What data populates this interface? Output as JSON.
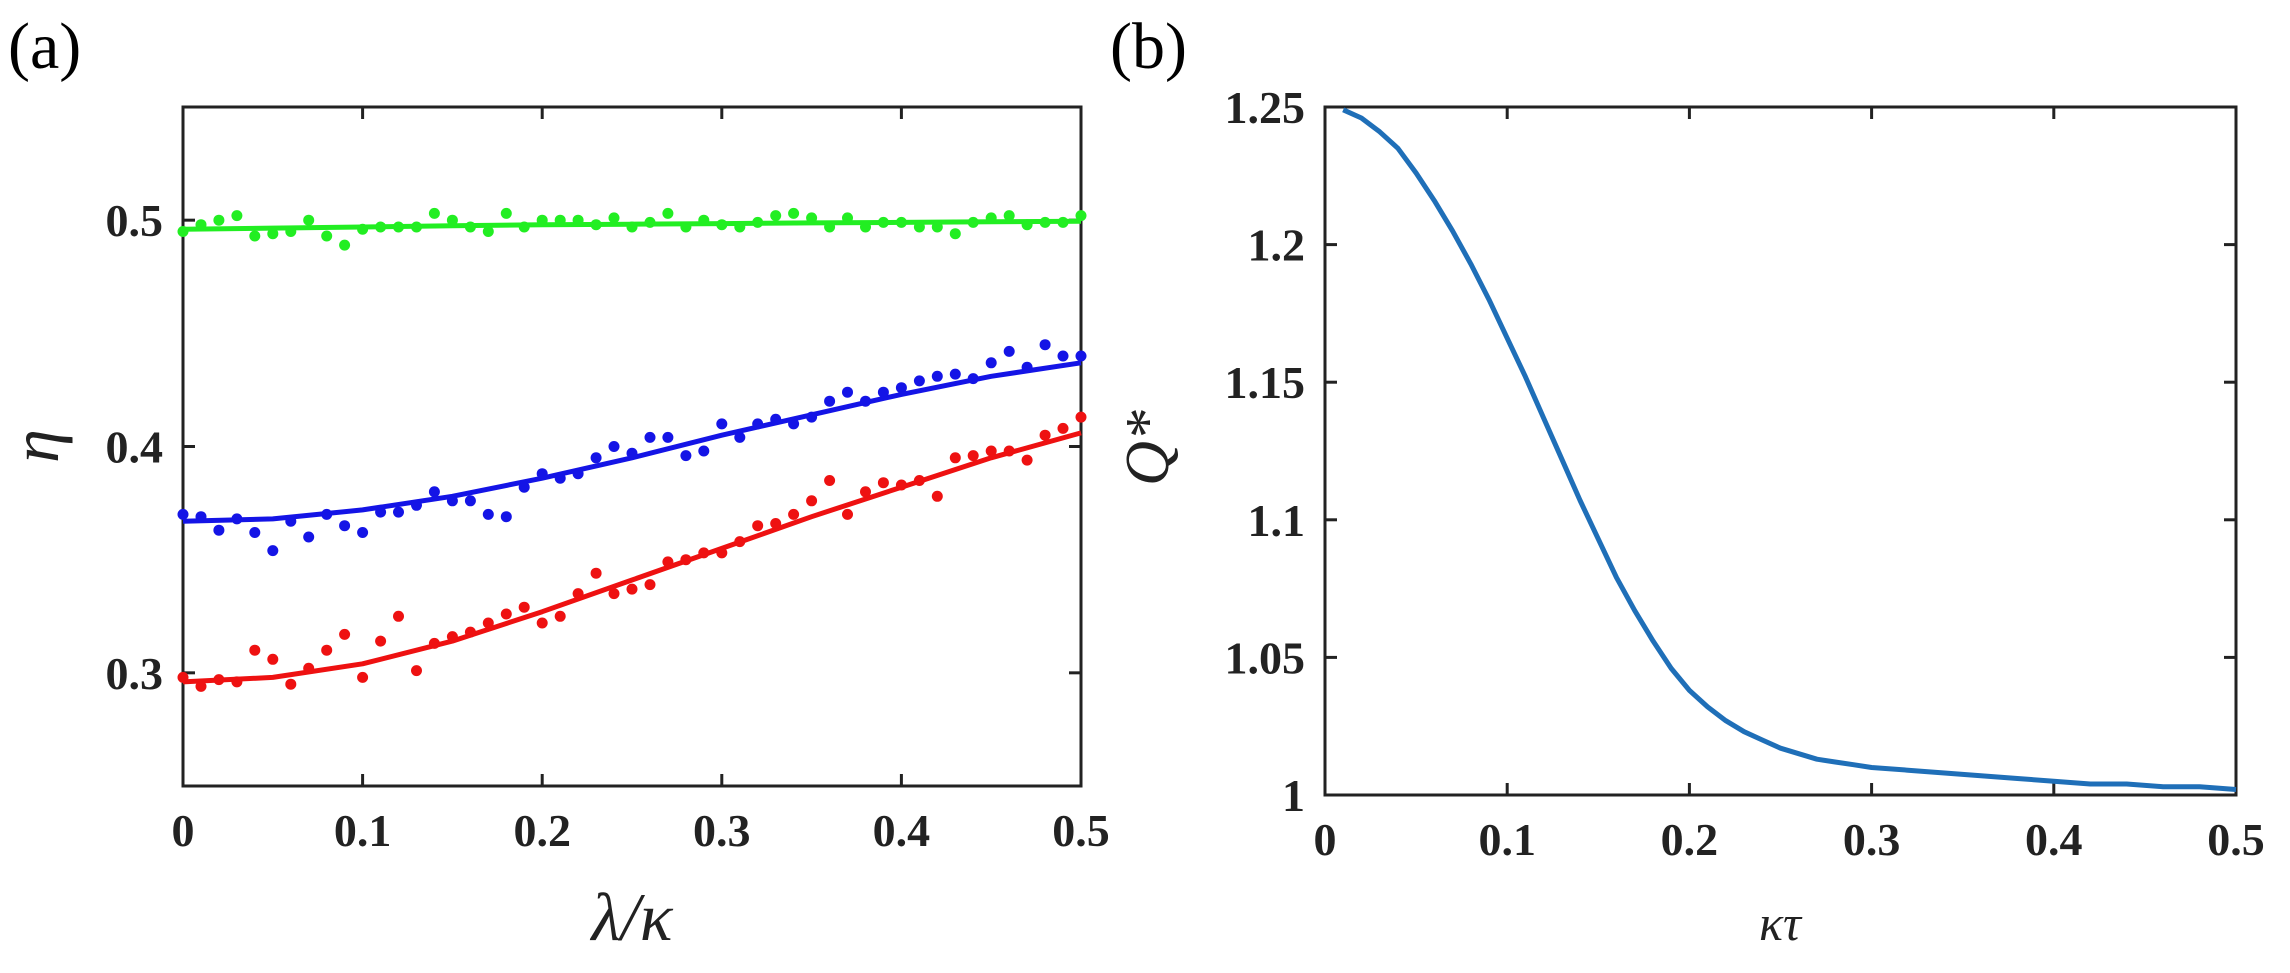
{
  "chart_data": [
    {
      "panel": "(a)",
      "type": "scatter",
      "xlabel": "λ/κ",
      "ylabel": "η",
      "xlim": [
        0,
        0.5
      ],
      "ylim": [
        0.25,
        0.55
      ],
      "xticks": [
        0,
        0.1,
        0.2,
        0.3,
        0.4,
        0.5
      ],
      "xtick_labels": [
        "0",
        "0.1",
        "0.2",
        "0.3",
        "0.4",
        "0.5"
      ],
      "yticks": [
        0.3,
        0.4,
        0.5
      ],
      "ytick_labels": [
        "0.3",
        "0.4",
        "0.5"
      ],
      "series": [
        {
          "name": "green",
          "color": "#22ee22",
          "fit_x": [
            0,
            0.05,
            0.1,
            0.15,
            0.2,
            0.25,
            0.3,
            0.35,
            0.4,
            0.45,
            0.5
          ],
          "fit_y": [
            0.496,
            0.4965,
            0.497,
            0.4975,
            0.498,
            0.4982,
            0.4985,
            0.4988,
            0.499,
            0.4993,
            0.4995
          ],
          "points_x": [
            0,
            0.01,
            0.02,
            0.03,
            0.04,
            0.05,
            0.06,
            0.07,
            0.08,
            0.09,
            0.1,
            0.11,
            0.12,
            0.13,
            0.14,
            0.15,
            0.16,
            0.17,
            0.18,
            0.19,
            0.2,
            0.21,
            0.22,
            0.23,
            0.24,
            0.25,
            0.26,
            0.27,
            0.28,
            0.29,
            0.3,
            0.31,
            0.32,
            0.33,
            0.34,
            0.35,
            0.36,
            0.37,
            0.38,
            0.39,
            0.4,
            0.41,
            0.42,
            0.43,
            0.44,
            0.45,
            0.46,
            0.47,
            0.48,
            0.49,
            0.5
          ],
          "points_y": [
            0.495,
            0.498,
            0.5,
            0.502,
            0.493,
            0.494,
            0.495,
            0.5,
            0.493,
            0.489,
            0.496,
            0.497,
            0.497,
            0.497,
            0.503,
            0.5,
            0.497,
            0.495,
            0.503,
            0.497,
            0.5,
            0.5,
            0.5,
            0.498,
            0.501,
            0.497,
            0.499,
            0.503,
            0.497,
            0.5,
            0.498,
            0.497,
            0.499,
            0.502,
            0.503,
            0.501,
            0.497,
            0.501,
            0.497,
            0.499,
            0.499,
            0.497,
            0.497,
            0.494,
            0.499,
            0.501,
            0.502,
            0.498,
            0.499,
            0.499,
            0.502
          ]
        },
        {
          "name": "blue",
          "color": "#1414e6",
          "fit_x": [
            0,
            0.05,
            0.1,
            0.15,
            0.2,
            0.25,
            0.3,
            0.35,
            0.4,
            0.45,
            0.5
          ],
          "fit_y": [
            0.367,
            0.368,
            0.372,
            0.378,
            0.386,
            0.395,
            0.405,
            0.414,
            0.423,
            0.431,
            0.437
          ],
          "points_x": [
            0,
            0.01,
            0.02,
            0.03,
            0.04,
            0.05,
            0.06,
            0.07,
            0.08,
            0.09,
            0.1,
            0.11,
            0.12,
            0.13,
            0.14,
            0.15,
            0.16,
            0.17,
            0.18,
            0.19,
            0.2,
            0.21,
            0.22,
            0.23,
            0.24,
            0.25,
            0.26,
            0.27,
            0.28,
            0.29,
            0.3,
            0.31,
            0.32,
            0.33,
            0.34,
            0.35,
            0.36,
            0.37,
            0.38,
            0.39,
            0.4,
            0.41,
            0.42,
            0.43,
            0.44,
            0.45,
            0.46,
            0.47,
            0.48,
            0.49,
            0.5
          ],
          "points_y": [
            0.37,
            0.369,
            0.363,
            0.368,
            0.362,
            0.354,
            0.367,
            0.36,
            0.37,
            0.365,
            0.362,
            0.371,
            0.371,
            0.374,
            0.38,
            0.376,
            0.376,
            0.37,
            0.369,
            0.382,
            0.388,
            0.386,
            0.388,
            0.395,
            0.4,
            0.397,
            0.404,
            0.404,
            0.396,
            0.398,
            0.41,
            0.404,
            0.41,
            0.412,
            0.41,
            0.413,
            0.42,
            0.424,
            0.42,
            0.424,
            0.426,
            0.429,
            0.431,
            0.432,
            0.43,
            0.437,
            0.442,
            0.435,
            0.445,
            0.44,
            0.44
          ]
        },
        {
          "name": "red",
          "color": "#ee1111",
          "fit_x": [
            0,
            0.05,
            0.1,
            0.15,
            0.2,
            0.25,
            0.3,
            0.35,
            0.4,
            0.45,
            0.5
          ],
          "fit_y": [
            0.296,
            0.298,
            0.304,
            0.314,
            0.327,
            0.341,
            0.355,
            0.369,
            0.382,
            0.395,
            0.406
          ],
          "points_x": [
            0,
            0.01,
            0.02,
            0.03,
            0.04,
            0.05,
            0.06,
            0.07,
            0.08,
            0.09,
            0.1,
            0.11,
            0.12,
            0.13,
            0.14,
            0.15,
            0.16,
            0.17,
            0.18,
            0.19,
            0.2,
            0.21,
            0.22,
            0.23,
            0.24,
            0.25,
            0.26,
            0.27,
            0.28,
            0.29,
            0.3,
            0.31,
            0.32,
            0.33,
            0.34,
            0.35,
            0.36,
            0.37,
            0.38,
            0.39,
            0.4,
            0.41,
            0.42,
            0.43,
            0.44,
            0.45,
            0.46,
            0.47,
            0.48,
            0.49,
            0.5
          ],
          "points_y": [
            0.298,
            0.294,
            0.297,
            0.296,
            0.31,
            0.306,
            0.295,
            0.302,
            0.31,
            0.317,
            0.298,
            0.314,
            0.325,
            0.301,
            0.313,
            0.316,
            0.318,
            0.322,
            0.326,
            0.329,
            0.322,
            0.325,
            0.335,
            0.344,
            0.335,
            0.337,
            0.339,
            0.349,
            0.35,
            0.353,
            0.353,
            0.358,
            0.365,
            0.366,
            0.37,
            0.376,
            0.385,
            0.37,
            0.38,
            0.384,
            0.383,
            0.385,
            0.378,
            0.395,
            0.396,
            0.398,
            0.398,
            0.394,
            0.405,
            0.408,
            0.413
          ]
        }
      ]
    },
    {
      "panel": "(b)",
      "type": "line",
      "xlabel": "κτ",
      "ylabel": "Q*",
      "xlim": [
        0,
        0.5
      ],
      "ylim": [
        1,
        1.25
      ],
      "xticks": [
        0,
        0.1,
        0.2,
        0.3,
        0.4,
        0.5
      ],
      "xtick_labels": [
        "0",
        "0.1",
        "0.2",
        "0.3",
        "0.4",
        "0.5"
      ],
      "yticks": [
        1,
        1.05,
        1.1,
        1.15,
        1.2,
        1.25
      ],
      "ytick_labels": [
        "1",
        "1.05",
        "1.1",
        "1.15",
        "1.2",
        "1.25"
      ],
      "series": [
        {
          "name": "Q*",
          "color": "#1f6fb8",
          "x": [
            0.01,
            0.02,
            0.03,
            0.04,
            0.05,
            0.06,
            0.07,
            0.08,
            0.09,
            0.1,
            0.11,
            0.12,
            0.13,
            0.14,
            0.15,
            0.16,
            0.17,
            0.18,
            0.19,
            0.2,
            0.21,
            0.22,
            0.23,
            0.24,
            0.25,
            0.26,
            0.27,
            0.28,
            0.29,
            0.3,
            0.32,
            0.34,
            0.36,
            0.38,
            0.4,
            0.42,
            0.44,
            0.46,
            0.48,
            0.5
          ],
          "y": [
            1.249,
            1.246,
            1.241,
            1.235,
            1.226,
            1.216,
            1.205,
            1.193,
            1.18,
            1.166,
            1.152,
            1.137,
            1.122,
            1.107,
            1.093,
            1.079,
            1.067,
            1.056,
            1.046,
            1.038,
            1.032,
            1.027,
            1.023,
            1.02,
            1.017,
            1.015,
            1.013,
            1.012,
            1.011,
            1.01,
            1.009,
            1.008,
            1.007,
            1.006,
            1.005,
            1.004,
            1.004,
            1.003,
            1.003,
            1.002
          ]
        }
      ]
    }
  ]
}
